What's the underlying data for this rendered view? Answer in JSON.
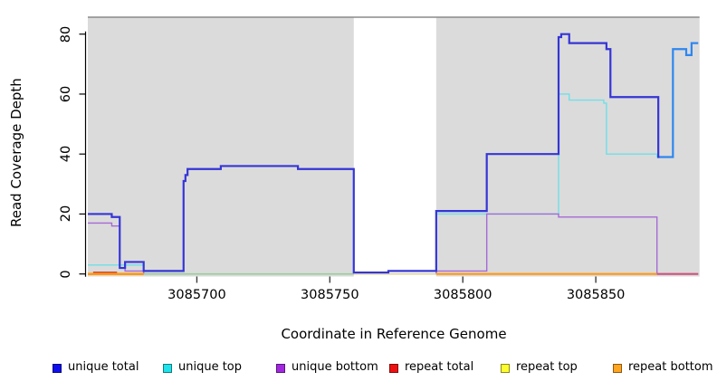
{
  "chart_data": {
    "type": "line",
    "subtype": "step-coverage-plot",
    "title": "",
    "xlabel": "Coordinate in Reference Genome",
    "ylabel": "Read Coverage Depth",
    "xlim": [
      3085659,
      3085889
    ],
    "ylim": [
      0,
      85.6
    ],
    "xticks": [
      3085700,
      3085750,
      3085800,
      3085850
    ],
    "yticks": [
      0,
      20,
      40,
      60,
      80
    ],
    "grid": false,
    "legend_position": "bottom",
    "shaded_regions": {
      "color": "#dbdbdb",
      "note": "mappability shading; white gap is a repeat region",
      "x_ranges": [
        [
          3085659,
          3085759
        ],
        [
          3085790,
          3085889
        ]
      ]
    },
    "top_border_color": "#8a8a8a",
    "axis_color": "#000000",
    "series": [
      {
        "name": "unique top",
        "type": "steps",
        "color": "#6fe0e8",
        "width": 1.4,
        "steps": [
          [
            3085659,
            3
          ],
          [
            3085680,
            0
          ],
          [
            3085790,
            20
          ],
          [
            3085836,
            60
          ],
          [
            3085840,
            58
          ],
          [
            3085853,
            57
          ],
          [
            3085854,
            40
          ],
          [
            3085873,
            39
          ],
          [
            3085879,
            75
          ],
          [
            3085884,
            73
          ],
          [
            3085886,
            77
          ]
        ],
        "end": 3085888.5
      },
      {
        "name": "unique bottom",
        "type": "steps",
        "color": "#a56ad6",
        "width": 1.4,
        "steps": [
          [
            3085659,
            17
          ],
          [
            3085668,
            16
          ],
          [
            3085671,
            2
          ],
          [
            3085673,
            1
          ],
          [
            3085680,
            0
          ],
          [
            3085790,
            1
          ],
          [
            3085809,
            20
          ],
          [
            3085836,
            19
          ],
          [
            3085873,
            0
          ]
        ],
        "end": 3085888.5
      },
      {
        "name": "repeat total / repeat top / repeat bottom (zero-depth baseline, overlap blends)",
        "type": "segments",
        "segments": [
          {
            "x1": 3085661,
            "x2": 3085670,
            "v": 0.45,
            "color": "#cc2222",
            "width": 2
          },
          {
            "x1": 3085659,
            "x2": 3085680,
            "v": 0,
            "color": "#ff9913",
            "width": 2.6
          },
          {
            "x1": 3085680,
            "x2": 3085759,
            "v": 0,
            "color": "#9acd9a",
            "width": 1.6
          },
          {
            "x1": 3085759,
            "x2": 3085790,
            "v": 0,
            "color": "#dfd29b",
            "width": 1.6
          },
          {
            "x1": 3085790,
            "x2": 3085873,
            "v": 0,
            "color": "#ff9913",
            "width": 2.2
          },
          {
            "x1": 3085873,
            "x2": 3085888.5,
            "v": 0,
            "color": "#c9537e",
            "width": 2.2
          }
        ]
      },
      {
        "name": "unique total",
        "type": "steps",
        "color": "#3535d6",
        "width": 2.2,
        "steps": [
          [
            3085659,
            20
          ],
          [
            3085668,
            19
          ],
          [
            3085671,
            2
          ],
          [
            3085673,
            4
          ],
          [
            3085680,
            1
          ],
          [
            3085695,
            31
          ],
          [
            3085695.7,
            33
          ],
          [
            3085696.5,
            35
          ],
          [
            3085709,
            36
          ],
          [
            3085738,
            35
          ],
          [
            3085759,
            0.5
          ],
          [
            3085772,
            1
          ],
          [
            3085790,
            21
          ],
          [
            3085809,
            40
          ],
          [
            3085836,
            79
          ],
          [
            3085837,
            80
          ],
          [
            3085840,
            77
          ],
          [
            3085854,
            75
          ],
          [
            3085855.5,
            59
          ],
          [
            3085873.5,
            39
          ]
        ],
        "end": 3085874
      },
      {
        "name": "unique total (coincident with unique top)",
        "type": "steps",
        "color": "#2e86f0",
        "width": 2.2,
        "steps": [
          [
            3085874,
            39
          ],
          [
            3085879,
            75
          ],
          [
            3085884,
            73
          ],
          [
            3085886,
            77
          ]
        ],
        "end": 3085888.5
      }
    ],
    "legend": [
      {
        "label": "unique total",
        "color": "#0f0fee"
      },
      {
        "label": "unique top",
        "color": "#1fe2ea"
      },
      {
        "label": "unique bottom",
        "color": "#a228e0"
      },
      {
        "label": "repeat total",
        "color": "#ee1111"
      },
      {
        "label": "repeat top",
        "color": "#fdfd2e"
      },
      {
        "label": "repeat bottom",
        "color": "#ffa51f"
      }
    ]
  }
}
